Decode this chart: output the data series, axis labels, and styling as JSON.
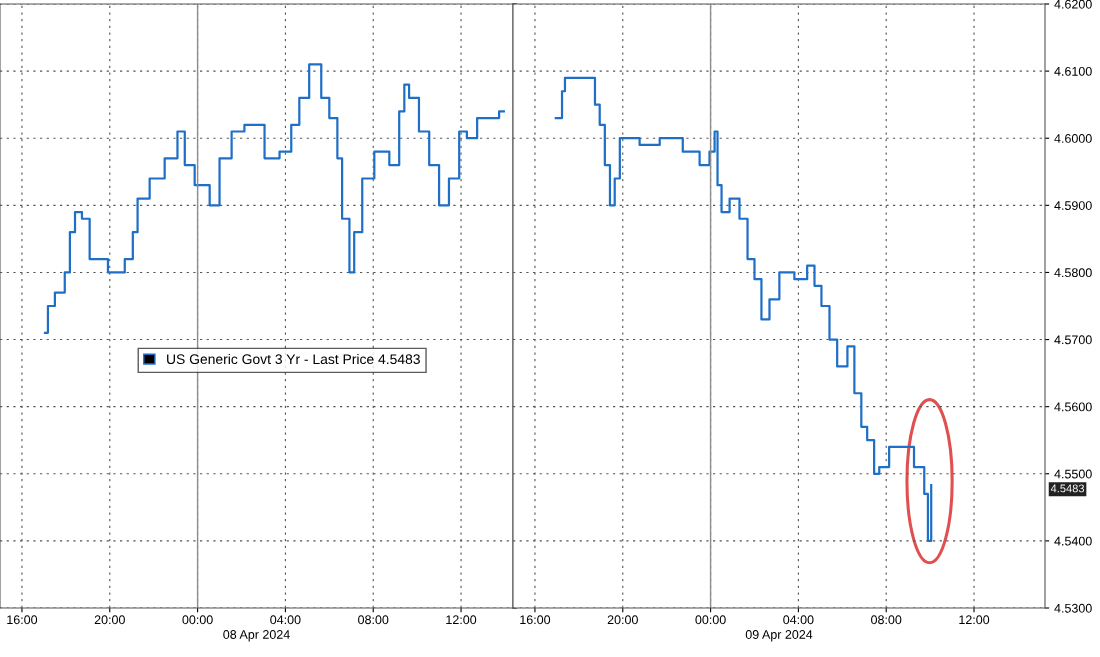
{
  "chart_data": [
    {
      "type": "step",
      "xlim": [
        "2024-04-07T15:00",
        "2024-04-08T14:22"
      ],
      "ylim": [
        4.53,
        4.62
      ],
      "xticks": [
        {
          "value": "2024-04-07T16:00",
          "label": "16:00"
        },
        {
          "value": "2024-04-07T20:00",
          "label": "20:00"
        },
        {
          "value": "2024-04-08T00:00",
          "label": "00:00"
        },
        {
          "value": "2024-04-08T04:00",
          "label": "04:00"
        },
        {
          "value": "2024-04-08T08:00",
          "label": "08:00"
        },
        {
          "value": "2024-04-08T12:00",
          "label": "12:00"
        }
      ],
      "yticks": [
        4.53,
        4.54,
        4.55,
        4.56,
        4.57,
        4.58,
        4.59,
        4.6,
        4.61,
        4.62
      ],
      "tick_labels": "x",
      "grid": true,
      "legend": "center",
      "line_style": "solid",
      "marker": "none",
      "annotations": [
        "08 Apr 2024"
      ],
      "ref_lines": [
        {
          "axis": "x",
          "value": "2024-04-08T00:00",
          "label": null,
          "color": "#8c8c8c",
          "line_style": "solid"
        }
      ],
      "series": [
        {
          "name": "US Generic Govt 3 Yr - Last Price 4.5483",
          "color": "#1f6fc6",
          "x": [
            "2024-04-07T17:03",
            "2024-04-07T17:11",
            "2024-04-07T17:30",
            "2024-04-07T17:57",
            "2024-04-07T18:11",
            "2024-04-07T18:25",
            "2024-04-07T18:44",
            "2024-04-07T19:05",
            "2024-04-07T19:55",
            "2024-04-07T20:41",
            "2024-04-07T21:03",
            "2024-04-07T21:16",
            "2024-04-07T21:49",
            "2024-04-07T22:30",
            "2024-04-07T23:05",
            "2024-04-07T23:25",
            "2024-04-07T23:52",
            "2024-04-08T00:33",
            "2024-04-08T01:00",
            "2024-04-08T01:33",
            "2024-04-08T02:08",
            "2024-04-08T03:03",
            "2024-04-08T03:44",
            "2024-04-08T04:16",
            "2024-04-08T04:38",
            "2024-04-08T05:05",
            "2024-04-08T05:38",
            "2024-04-08T06:00",
            "2024-04-08T06:22",
            "2024-04-08T06:35",
            "2024-04-08T06:55",
            "2024-04-08T07:08",
            "2024-04-08T07:30",
            "2024-04-08T08:03",
            "2024-04-08T08:44",
            "2024-04-08T09:11",
            "2024-04-08T09:25",
            "2024-04-08T09:38",
            "2024-04-08T10:05",
            "2024-04-08T10:33",
            "2024-04-08T11:00",
            "2024-04-08T11:27",
            "2024-04-08T11:55",
            "2024-04-08T12:16",
            "2024-04-08T12:44",
            "2024-04-08T13:44",
            "2024-04-08T13:57"
          ],
          "values": [
            4.571,
            4.575,
            4.577,
            4.58,
            4.586,
            4.589,
            4.588,
            4.582,
            4.58,
            4.582,
            4.586,
            4.591,
            4.594,
            4.597,
            4.601,
            4.596,
            4.593,
            4.59,
            4.597,
            4.601,
            4.602,
            4.597,
            4.598,
            4.602,
            4.606,
            4.611,
            4.606,
            4.603,
            4.597,
            4.588,
            4.58,
            4.586,
            4.594,
            4.598,
            4.596,
            4.604,
            4.608,
            4.606,
            4.601,
            4.596,
            4.59,
            4.594,
            4.601,
            4.6,
            4.603,
            4.604,
            4.604
          ]
        }
      ]
    },
    {
      "type": "step",
      "xlim": [
        "2024-04-08T15:00",
        "2024-04-09T15:14"
      ],
      "ylim": [
        4.53,
        4.62
      ],
      "xticks": [
        {
          "value": "2024-04-08T16:00",
          "label": "16:00"
        },
        {
          "value": "2024-04-08T20:00",
          "label": "20:00"
        },
        {
          "value": "2024-04-09T00:00",
          "label": "00:00"
        },
        {
          "value": "2024-04-09T04:00",
          "label": "04:00"
        },
        {
          "value": "2024-04-09T08:00",
          "label": "08:00"
        },
        {
          "value": "2024-04-09T12:00",
          "label": "12:00"
        }
      ],
      "yticks": [
        {
          "value": 4.53,
          "label": "4.5300"
        },
        {
          "value": 4.54,
          "label": "4.5400"
        },
        {
          "value": 4.55,
          "label": "4.5500"
        },
        {
          "value": 4.56,
          "label": "4.5600"
        },
        {
          "value": 4.57,
          "label": "4.5700"
        },
        {
          "value": 4.58,
          "label": "4.5800"
        },
        {
          "value": 4.59,
          "label": "4.5900"
        },
        {
          "value": 4.6,
          "label": "4.6000"
        },
        {
          "value": 4.61,
          "label": "4.6100"
        },
        {
          "value": 4.62,
          "label": "4.6200"
        }
      ],
      "grid": true,
      "line_style": "solid",
      "marker": "none",
      "annotations": [
        "09 Apr 2024",
        "4.5483"
      ],
      "ref_lines": [
        {
          "axis": "x",
          "value": "2024-04-09T00:00",
          "label": null,
          "color": "#8c8c8c",
          "line_style": "solid"
        }
      ],
      "series": [
        {
          "color": "#1f6fc6",
          "x": [
            "2024-04-08T16:57",
            "2024-04-08T17:14",
            "2024-04-08T17:22",
            "2024-04-08T18:44",
            "2024-04-08T18:57",
            "2024-04-08T19:11",
            "2024-04-08T19:25",
            "2024-04-08T19:38",
            "2024-04-08T19:52",
            "2024-04-08T20:46",
            "2024-04-08T21:41",
            "2024-04-08T22:44",
            "2024-04-08T23:30",
            "2024-04-08T23:57",
            "2024-04-09T00:11",
            "2024-04-09T00:19",
            "2024-04-09T00:30",
            "2024-04-09T00:52",
            "2024-04-09T01:19",
            "2024-04-09T01:41",
            "2024-04-09T02:00",
            "2024-04-09T02:19",
            "2024-04-09T02:41",
            "2024-04-09T03:08",
            "2024-04-09T03:49",
            "2024-04-09T04:24",
            "2024-04-09T04:44",
            "2024-04-09T05:03",
            "2024-04-09T05:25",
            "2024-04-09T05:46",
            "2024-04-09T06:14",
            "2024-04-09T06:33",
            "2024-04-09T06:52",
            "2024-04-09T07:08",
            "2024-04-09T07:27",
            "2024-04-09T07:41",
            "2024-04-09T08:08",
            "2024-04-09T08:49",
            "2024-04-09T09:16",
            "2024-04-09T09:44",
            "2024-04-09T09:54",
            "2024-04-09T10:03"
          ],
          "values": [
            4.603,
            4.607,
            4.609,
            4.605,
            4.602,
            4.596,
            4.59,
            4.594,
            4.6,
            4.599,
            4.6,
            4.598,
            4.596,
            4.598,
            4.601,
            4.593,
            4.589,
            4.591,
            4.588,
            4.582,
            4.579,
            4.573,
            4.576,
            4.58,
            4.579,
            4.581,
            4.578,
            4.575,
            4.57,
            4.566,
            4.569,
            4.562,
            4.557,
            4.555,
            4.55,
            4.551,
            4.554,
            4.554,
            4.551,
            4.547,
            4.54,
            4.5483
          ]
        }
      ]
    }
  ]
}
